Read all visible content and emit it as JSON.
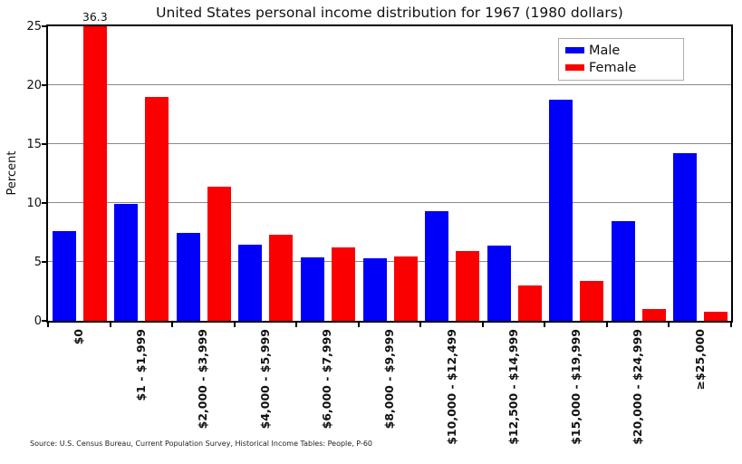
{
  "source_note": "Source: U.S. Census Bureau, Current Population Survey, Historical Income Tables: People, P-60",
  "chart_data": {
    "type": "bar",
    "title": "United States personal income distribution for 1967 (1980 dollars)",
    "xlabel": "",
    "ylabel": "Percent",
    "ylim": [
      0,
      25
    ],
    "yticks": [
      0,
      5,
      10,
      15,
      20,
      25
    ],
    "grid": true,
    "legend_position": "upper right",
    "categories": [
      "$0",
      "$1 - $1,999",
      "$2,000 - $3,999",
      "$4,000 - $5,999",
      "$6,000 - $7,999",
      "$8,000 - $9,999",
      "$10,000 - $12,499",
      "$12,500 - $14,999",
      "$15,000 - $19,999",
      "$20,000 - $24,999",
      "≥$25,000"
    ],
    "series": [
      {
        "name": "Male",
        "color": "#0000fa",
        "values": [
          7.6,
          9.9,
          7.5,
          6.5,
          5.4,
          5.3,
          9.3,
          6.4,
          18.8,
          8.5,
          14.2
        ]
      },
      {
        "name": "Female",
        "color": "#fa0000",
        "values": [
          36.3,
          19.0,
          11.4,
          7.3,
          6.2,
          5.5,
          5.9,
          3.0,
          3.4,
          1.0,
          0.8
        ]
      }
    ],
    "annotations": [
      {
        "text": "36.3",
        "series": "Female",
        "category_index": 0,
        "note": "value label above clipped bar"
      }
    ],
    "axis_colors": {
      "grid": "#8a8a8a",
      "spine": "#000000",
      "text": "#111111"
    }
  }
}
